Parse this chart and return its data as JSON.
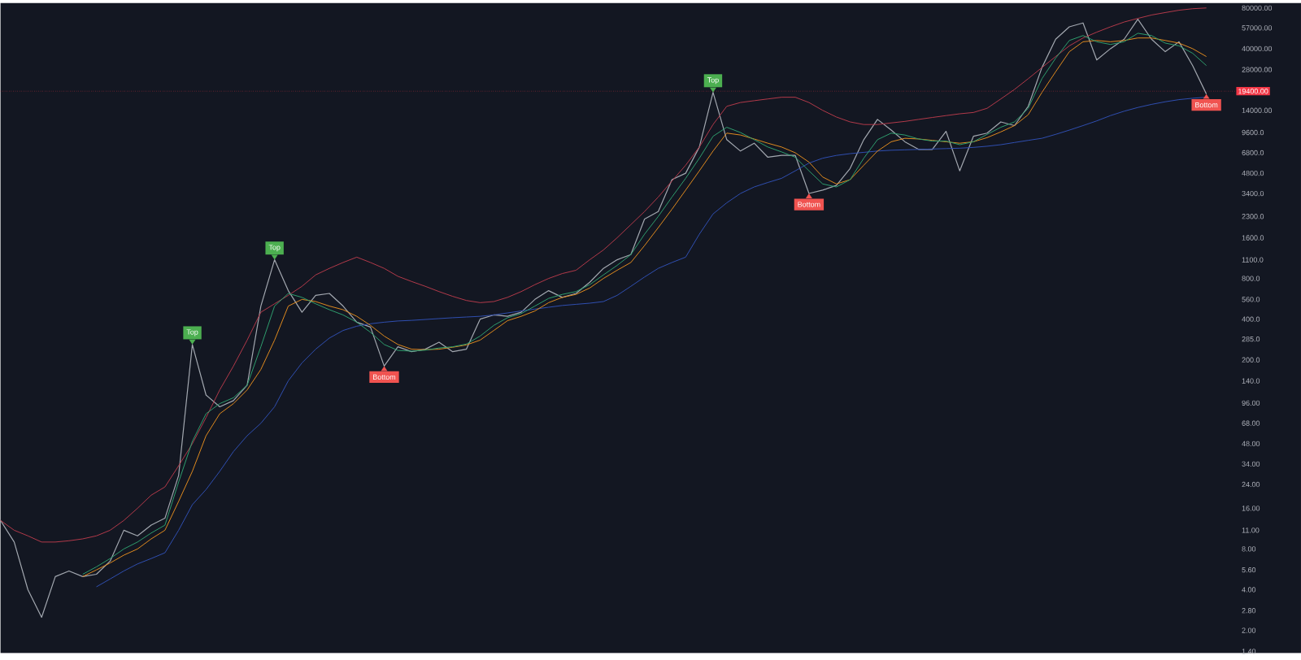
{
  "chart_data": {
    "type": "line",
    "log": "y",
    "ylim": [
      1.36,
      87000
    ],
    "tick_labels": "y",
    "categories": [
      null,
      null,
      null,
      null,
      null,
      null,
      null,
      null,
      null,
      null,
      null,
      null,
      null,
      null,
      null,
      null,
      null,
      null,
      null,
      null,
      null,
      null,
      null,
      null,
      null,
      null,
      null,
      null,
      null,
      null,
      null,
      null,
      null,
      null,
      null,
      null,
      null,
      null,
      null,
      null,
      null,
      null,
      null,
      null,
      null,
      null,
      null,
      null,
      null,
      null,
      null,
      null,
      null,
      null,
      null,
      null,
      null,
      null,
      null,
      null,
      null,
      null,
      null,
      null,
      null,
      null,
      null,
      null,
      null,
      null,
      null,
      null,
      null,
      null,
      null,
      null,
      null,
      null,
      null,
      null,
      null,
      null,
      null,
      null,
      null,
      null,
      null,
      null,
      null,
      null,
      null
    ],
    "yticks": [
      {
        "value": 1.4,
        "label": "1.40"
      },
      {
        "value": 2,
        "label": "2.00"
      },
      {
        "value": 2.8,
        "label": "2.80"
      },
      {
        "value": 4,
        "label": "4.00"
      },
      {
        "value": 5.6,
        "label": "5.60"
      },
      {
        "value": 8,
        "label": "8.00"
      },
      {
        "value": 11,
        "label": "11.00"
      },
      {
        "value": 16,
        "label": "16.00"
      },
      {
        "value": 24,
        "label": "24.00"
      },
      {
        "value": 34,
        "label": "34.00"
      },
      {
        "value": 48,
        "label": "48.00"
      },
      {
        "value": 68,
        "label": "68.00"
      },
      {
        "value": 96,
        "label": "96.00"
      },
      {
        "value": 140,
        "label": "140.0"
      },
      {
        "value": 200,
        "label": "200.0"
      },
      {
        "value": 285,
        "label": "285.0"
      },
      {
        "value": 400,
        "label": "400.0"
      },
      {
        "value": 560,
        "label": "560.0"
      },
      {
        "value": 800,
        "label": "800.0"
      },
      {
        "value": 1100,
        "label": "1100.0"
      },
      {
        "value": 1600,
        "label": "1600.0"
      },
      {
        "value": 2300,
        "label": "2300.0"
      },
      {
        "value": 3400,
        "label": "3400.0"
      },
      {
        "value": 4800,
        "label": "4800.0"
      },
      {
        "value": 6800,
        "label": "6800.0"
      },
      {
        "value": 9600,
        "label": "9600.0"
      },
      {
        "value": 14000,
        "label": "14000.00"
      },
      {
        "value": 28000,
        "label": "28000.00"
      },
      {
        "value": 40000,
        "label": "40000.00"
      },
      {
        "value": 57000,
        "label": "57000.00"
      },
      {
        "value": 80000,
        "label": "80000.00"
      }
    ],
    "series": [
      {
        "color": "#a3a8b0",
        "values": [
          13,
          9,
          4,
          2.5,
          5,
          5.5,
          5,
          5.2,
          6.5,
          11,
          10,
          12,
          13.5,
          28,
          260,
          110,
          90,
          100,
          130,
          500,
          1100,
          650,
          450,
          600,
          620,
          500,
          380,
          350,
          180,
          250,
          230,
          240,
          270,
          230,
          240,
          400,
          430,
          420,
          450,
          560,
          650,
          580,
          620,
          750,
          950,
          1100,
          1200,
          2200,
          2500,
          4300,
          4800,
          7500,
          19000,
          8500,
          7000,
          8000,
          6300,
          6500,
          6500,
          3400,
          3600,
          3900,
          5200,
          8500,
          12000,
          10000,
          8200,
          7200,
          7200,
          9800,
          5000,
          9000,
          9500,
          11500,
          10800,
          15000,
          29000,
          47000,
          58000,
          62000,
          33000,
          40000,
          47000,
          66000,
          47000,
          38000,
          45000,
          30000,
          18500,
          null,
          null
        ]
      },
      {
        "color": "#b2394a",
        "values": [
          13,
          11,
          10,
          9,
          9,
          9.2,
          9.5,
          10,
          11,
          13,
          16,
          20,
          23,
          33,
          48,
          75,
          120,
          180,
          280,
          450,
          520,
          600,
          700,
          850,
          950,
          1050,
          1150,
          1050,
          950,
          830,
          760,
          700,
          640,
          590,
          550,
          530,
          540,
          580,
          640,
          720,
          800,
          870,
          920,
          1100,
          1300,
          1600,
          2000,
          2500,
          3200,
          4200,
          5500,
          7500,
          11000,
          15000,
          16000,
          16500,
          17000,
          17500,
          17500,
          16000,
          14000,
          12500,
          11500,
          11000,
          11000,
          11300,
          11600,
          12000,
          12400,
          12800,
          13200,
          13500,
          14500,
          17000,
          20000,
          24000,
          29000,
          35000,
          42000,
          48000,
          53000,
          58000,
          63000,
          67000,
          71000,
          74000,
          77000,
          79000,
          80000,
          null,
          null
        ]
      },
      {
        "color": "#2f4fb0",
        "values": [
          null,
          null,
          null,
          null,
          null,
          null,
          null,
          4.2,
          4.8,
          5.5,
          6.2,
          6.8,
          7.5,
          11,
          17,
          22,
          30,
          42,
          55,
          68,
          90,
          140,
          190,
          240,
          290,
          330,
          355,
          370,
          380,
          388,
          392,
          398,
          404,
          410,
          415,
          420,
          430,
          445,
          460,
          475,
          490,
          505,
          515,
          525,
          540,
          600,
          700,
          820,
          950,
          1050,
          1150,
          1700,
          2400,
          2900,
          3400,
          3800,
          4100,
          4400,
          5000,
          5700,
          6200,
          6500,
          6700,
          6850,
          7000,
          7100,
          7150,
          7200,
          7250,
          7300,
          7350,
          7450,
          7600,
          7800,
          8100,
          8400,
          8700,
          9300,
          10000,
          10800,
          11700,
          12800,
          13800,
          14700,
          15500,
          16200,
          16800,
          17200,
          17500,
          null,
          null
        ]
      },
      {
        "color": "#e08a1e",
        "values": [
          null,
          null,
          null,
          null,
          null,
          null,
          5,
          5.6,
          6.3,
          7.2,
          8,
          9.5,
          11,
          18,
          30,
          55,
          80,
          95,
          120,
          170,
          280,
          500,
          560,
          540,
          500,
          470,
          420,
          360,
          300,
          260,
          240,
          238,
          240,
          248,
          258,
          280,
          330,
          390,
          420,
          460,
          530,
          580,
          610,
          680,
          800,
          920,
          1050,
          1400,
          1900,
          2600,
          3600,
          5000,
          7000,
          9500,
          9200,
          8600,
          8000,
          7500,
          6800,
          5800,
          4500,
          4000,
          4300,
          5500,
          7000,
          8200,
          8700,
          8600,
          8400,
          8200,
          8000,
          8200,
          8800,
          9700,
          10800,
          13000,
          19000,
          27000,
          38000,
          45000,
          46000,
          45000,
          46000,
          48000,
          48000,
          46000,
          44000,
          40000,
          35000,
          null,
          null
        ]
      },
      {
        "color": "#2e9e6e",
        "values": [
          null,
          null,
          null,
          null,
          null,
          null,
          5.2,
          5.9,
          6.8,
          8,
          9,
          10.5,
          12,
          25,
          50,
          80,
          95,
          105,
          130,
          250,
          500,
          620,
          580,
          520,
          470,
          430,
          380,
          320,
          260,
          235,
          232,
          236,
          245,
          250,
          262,
          300,
          360,
          410,
          440,
          500,
          570,
          610,
          640,
          720,
          850,
          1000,
          1200,
          1700,
          2300,
          3200,
          4400,
          6200,
          9000,
          10500,
          9600,
          8500,
          7500,
          6900,
          6300,
          5000,
          4000,
          3800,
          4300,
          6200,
          8500,
          9500,
          9200,
          8600,
          8300,
          8300,
          7800,
          8200,
          9300,
          10500,
          11500,
          14500,
          24000,
          34000,
          46000,
          50000,
          45000,
          43000,
          45000,
          52000,
          50000,
          44000,
          42000,
          37000,
          30000,
          null,
          null
        ]
      }
    ],
    "annotations": [
      {
        "text": "Top",
        "y": 260
      },
      {
        "text": "Top",
        "y": 1100
      },
      {
        "text": "Bottom",
        "y": 180
      },
      {
        "text": "Top",
        "y": 19000
      },
      {
        "text": "Bottom",
        "y": 3400
      },
      {
        "text": "Bottom",
        "y": 18500
      }
    ],
    "ref_lines": [
      {
        "axis": "y",
        "value": 19400,
        "label": "19400.00",
        "color": "#f23645"
      }
    ]
  }
}
